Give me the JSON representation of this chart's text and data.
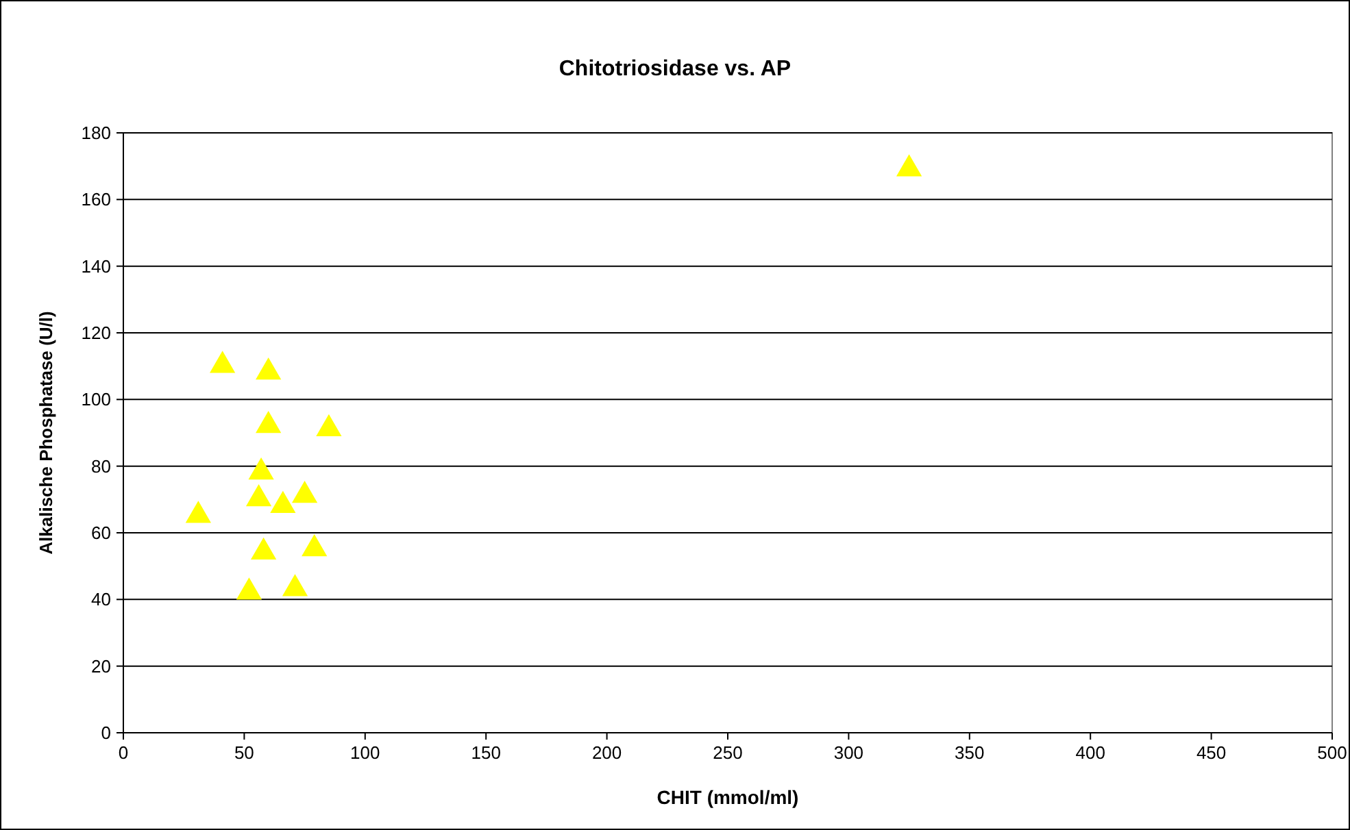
{
  "chart_data": {
    "type": "scatter",
    "title": "Chitotriosidase vs. AP",
    "xlabel": "CHIT (mmol/ml)",
    "ylabel": "Alkalische Phosphatase (U/l)",
    "x": [
      31,
      41,
      52,
      56,
      57,
      58,
      60,
      60,
      66,
      71,
      75,
      79,
      85,
      325
    ],
    "values": [
      66,
      111,
      43,
      71,
      79,
      55,
      93,
      109,
      69,
      44,
      72,
      56,
      92,
      170
    ],
    "color": "#ffff00",
    "marker": "triangle",
    "xlim": [
      0,
      500
    ],
    "ylim": [
      0,
      180
    ],
    "xticks": [
      0,
      50,
      100,
      150,
      200,
      250,
      300,
      350,
      400,
      450,
      500
    ],
    "yticks": [
      0,
      20,
      40,
      60,
      80,
      100,
      120,
      140,
      160,
      180
    ],
    "grid": "y"
  }
}
